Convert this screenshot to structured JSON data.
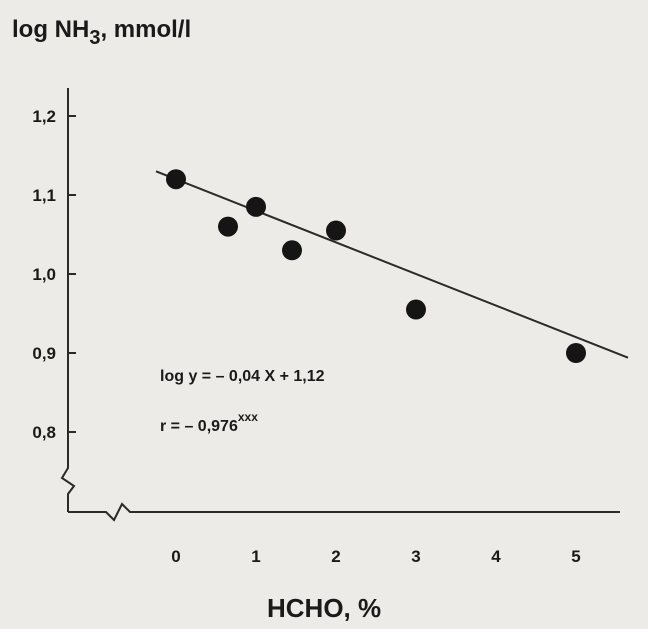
{
  "chart_data": {
    "type": "scatter",
    "title": "",
    "ylabel": {
      "prefix": "log NH",
      "subscript": "3",
      "suffix": ", mmol/l"
    },
    "xlabel": "HCHO, %",
    "xlim": [
      -0.1,
      5.6
    ],
    "ylim": [
      0.7,
      1.22
    ],
    "x_ticks": [
      0,
      1,
      2,
      3,
      4,
      5
    ],
    "x_tick_labels": [
      "0",
      "1",
      "2",
      "3",
      "4",
      "5"
    ],
    "y_ticks": [
      0.8,
      0.9,
      1.0,
      1.1,
      1.2
    ],
    "y_tick_labels": [
      "0,8",
      "0,9",
      "1,0",
      "1,1",
      "1,2"
    ],
    "axis_breaks": true,
    "grid": false,
    "points": [
      {
        "x": 0.0,
        "y": 1.12
      },
      {
        "x": 0.65,
        "y": 1.06
      },
      {
        "x": 1.0,
        "y": 1.085
      },
      {
        "x": 1.45,
        "y": 1.03
      },
      {
        "x": 2.0,
        "y": 1.055
      },
      {
        "x": 3.0,
        "y": 0.955
      },
      {
        "x": 5.0,
        "y": 0.9
      }
    ],
    "regression": {
      "slope": -0.04,
      "intercept": 1.12,
      "x_range": [
        -0.25,
        5.65
      ]
    },
    "annotations": {
      "equation": "log y =  – 0,04 X + 1,12",
      "r_prefix": "r =   – 0,976",
      "r_superscript": "xxx"
    },
    "colors": {
      "point": "#151515",
      "line": "#2a2a2a",
      "axis": "#2a2a2a",
      "background": "#ecebe8"
    }
  }
}
